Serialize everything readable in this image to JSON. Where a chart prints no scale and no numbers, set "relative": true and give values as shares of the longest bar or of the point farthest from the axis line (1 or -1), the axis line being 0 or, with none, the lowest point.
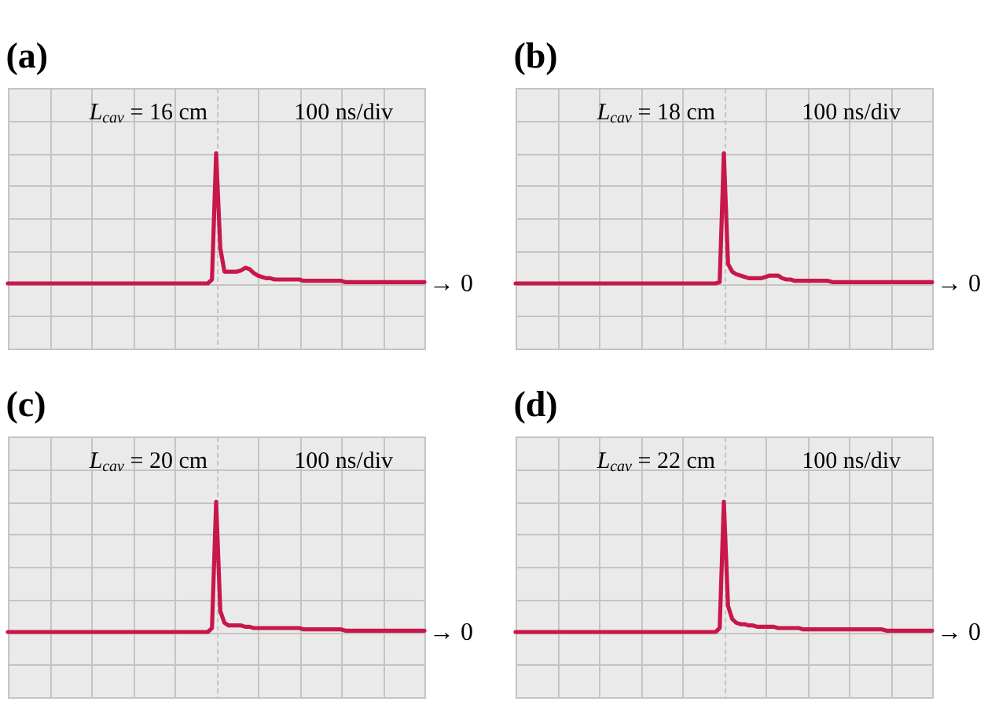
{
  "chart_data": [
    {
      "type": "line",
      "title": "(a)",
      "relative": true,
      "grid": true,
      "categories": [
        null,
        null,
        null,
        null,
        null,
        null,
        null,
        null,
        null,
        null,
        null,
        null,
        null,
        null,
        null,
        null,
        null,
        null,
        null,
        null,
        null,
        null,
        null,
        null,
        null,
        null,
        null,
        null,
        null,
        null,
        null,
        null,
        null,
        null,
        null,
        null,
        null,
        null,
        null,
        null,
        null,
        null,
        null,
        null,
        null,
        null,
        null,
        null,
        null,
        null,
        null,
        null,
        null,
        null,
        null,
        null,
        null,
        null,
        null,
        null,
        null,
        null,
        null,
        null,
        null,
        null,
        null,
        null,
        null,
        null,
        null,
        null,
        null,
        null,
        null,
        null,
        null,
        null,
        null,
        null,
        null,
        null,
        null,
        null,
        null,
        null,
        null,
        null,
        null,
        null,
        null,
        null,
        null,
        null,
        null,
        null,
        null,
        null,
        null,
        null,
        null
      ],
      "series": [
        {
          "color": "#c8174a",
          "values": [
            0,
            0,
            0,
            0,
            0,
            0,
            0,
            0,
            0,
            0,
            0,
            0,
            0,
            0,
            0,
            0,
            0,
            0,
            0,
            0,
            0,
            0,
            0,
            0,
            0,
            0,
            0,
            0,
            0,
            0,
            0,
            0,
            0,
            0,
            0,
            0,
            0,
            0,
            0,
            0,
            0,
            0,
            0,
            0,
            0,
            0,
            0,
            0,
            0,
            0.03,
            1,
            0.27,
            0.09,
            0.09,
            0.09,
            0.09,
            0.1,
            0.12,
            0.11,
            0.08,
            0.06,
            0.05,
            0.04,
            0.04,
            0.03,
            0.03,
            0.03,
            0.03,
            0.03,
            0.03,
            0.03,
            0.02,
            0.02,
            0.02,
            0.02,
            0.02,
            0.02,
            0.02,
            0.02,
            0.02,
            0.02,
            0.01,
            0.01,
            0.01,
            0.01,
            0.01,
            0.01,
            0.01,
            0.01,
            0.01,
            0.01,
            0.01,
            0.01,
            0.01,
            0.01,
            0.01,
            0.01,
            0.01,
            0.01,
            0.01,
            0.01
          ]
        }
      ],
      "annotations": [
        "L$_{cav}$ = 16 cm",
        "100 ns/div",
        "→ 0"
      ]
    },
    {
      "type": "line",
      "title": "(b)",
      "relative": true,
      "grid": true,
      "categories": [
        null,
        null,
        null,
        null,
        null,
        null,
        null,
        null,
        null,
        null,
        null,
        null,
        null,
        null,
        null,
        null,
        null,
        null,
        null,
        null,
        null,
        null,
        null,
        null,
        null,
        null,
        null,
        null,
        null,
        null,
        null,
        null,
        null,
        null,
        null,
        null,
        null,
        null,
        null,
        null,
        null,
        null,
        null,
        null,
        null,
        null,
        null,
        null,
        null,
        null,
        null,
        null,
        null,
        null,
        null,
        null,
        null,
        null,
        null,
        null,
        null,
        null,
        null,
        null,
        null,
        null,
        null,
        null,
        null,
        null,
        null,
        null,
        null,
        null,
        null,
        null,
        null,
        null,
        null,
        null,
        null,
        null,
        null,
        null,
        null,
        null,
        null,
        null,
        null,
        null,
        null,
        null,
        null,
        null,
        null,
        null,
        null,
        null,
        null,
        null,
        null
      ],
      "series": [
        {
          "color": "#c8174a",
          "values": [
            0,
            0,
            0,
            0,
            0,
            0,
            0,
            0,
            0,
            0,
            0,
            0,
            0,
            0,
            0,
            0,
            0,
            0,
            0,
            0,
            0,
            0,
            0,
            0,
            0,
            0,
            0,
            0,
            0,
            0,
            0,
            0,
            0,
            0,
            0,
            0,
            0,
            0,
            0,
            0,
            0,
            0,
            0,
            0,
            0,
            0,
            0,
            0,
            0,
            0.01,
            1,
            0.15,
            0.09,
            0.07,
            0.06,
            0.05,
            0.04,
            0.04,
            0.04,
            0.04,
            0.05,
            0.06,
            0.06,
            0.06,
            0.04,
            0.03,
            0.03,
            0.02,
            0.02,
            0.02,
            0.02,
            0.02,
            0.02,
            0.02,
            0.02,
            0.02,
            0.01,
            0.01,
            0.01,
            0.01,
            0.01,
            0.01,
            0.01,
            0.01,
            0.01,
            0.01,
            0.01,
            0.01,
            0.01,
            0.01,
            0.01,
            0.01,
            0.01,
            0.01,
            0.01,
            0.01,
            0.01,
            0.01,
            0.01,
            0.01,
            0.01
          ]
        }
      ],
      "annotations": [
        "L$_{cav}$ = 18 cm",
        "100 ns/div",
        "→ 0"
      ]
    },
    {
      "type": "line",
      "title": "(c)",
      "relative": true,
      "grid": true,
      "categories": [
        null,
        null,
        null,
        null,
        null,
        null,
        null,
        null,
        null,
        null,
        null,
        null,
        null,
        null,
        null,
        null,
        null,
        null,
        null,
        null,
        null,
        null,
        null,
        null,
        null,
        null,
        null,
        null,
        null,
        null,
        null,
        null,
        null,
        null,
        null,
        null,
        null,
        null,
        null,
        null,
        null,
        null,
        null,
        null,
        null,
        null,
        null,
        null,
        null,
        null,
        null,
        null,
        null,
        null,
        null,
        null,
        null,
        null,
        null,
        null,
        null,
        null,
        null,
        null,
        null,
        null,
        null,
        null,
        null,
        null,
        null,
        null,
        null,
        null,
        null,
        null,
        null,
        null,
        null,
        null,
        null,
        null,
        null,
        null,
        null,
        null,
        null,
        null,
        null,
        null,
        null,
        null,
        null,
        null,
        null,
        null,
        null,
        null,
        null,
        null,
        null
      ],
      "series": [
        {
          "color": "#c8174a",
          "values": [
            0,
            0,
            0,
            0,
            0,
            0,
            0,
            0,
            0,
            0,
            0,
            0,
            0,
            0,
            0,
            0,
            0,
            0,
            0,
            0,
            0,
            0,
            0,
            0,
            0,
            0,
            0,
            0,
            0,
            0,
            0,
            0,
            0,
            0,
            0,
            0,
            0,
            0,
            0,
            0,
            0,
            0,
            0,
            0,
            0,
            0,
            0,
            0,
            0,
            0.03,
            1,
            0.16,
            0.07,
            0.05,
            0.05,
            0.05,
            0.05,
            0.04,
            0.04,
            0.03,
            0.03,
            0.03,
            0.03,
            0.03,
            0.03,
            0.03,
            0.03,
            0.03,
            0.03,
            0.03,
            0.03,
            0.02,
            0.02,
            0.02,
            0.02,
            0.02,
            0.02,
            0.02,
            0.02,
            0.02,
            0.02,
            0.01,
            0.01,
            0.01,
            0.01,
            0.01,
            0.01,
            0.01,
            0.01,
            0.01,
            0.01,
            0.01,
            0.01,
            0.01,
            0.01,
            0.01,
            0.01,
            0.01,
            0.01,
            0.01,
            0.01
          ]
        }
      ],
      "annotations": [
        "L$_{cav}$ = 20 cm",
        "100 ns/div",
        "→ 0"
      ]
    },
    {
      "type": "line",
      "title": "(d)",
      "relative": true,
      "grid": true,
      "categories": [
        null,
        null,
        null,
        null,
        null,
        null,
        null,
        null,
        null,
        null,
        null,
        null,
        null,
        null,
        null,
        null,
        null,
        null,
        null,
        null,
        null,
        null,
        null,
        null,
        null,
        null,
        null,
        null,
        null,
        null,
        null,
        null,
        null,
        null,
        null,
        null,
        null,
        null,
        null,
        null,
        null,
        null,
        null,
        null,
        null,
        null,
        null,
        null,
        null,
        null,
        null,
        null,
        null,
        null,
        null,
        null,
        null,
        null,
        null,
        null,
        null,
        null,
        null,
        null,
        null,
        null,
        null,
        null,
        null,
        null,
        null,
        null,
        null,
        null,
        null,
        null,
        null,
        null,
        null,
        null,
        null,
        null,
        null,
        null,
        null,
        null,
        null,
        null,
        null,
        null,
        null,
        null,
        null,
        null,
        null,
        null,
        null,
        null,
        null,
        null,
        null
      ],
      "series": [
        {
          "color": "#c8174a",
          "values": [
            0,
            0,
            0,
            0,
            0,
            0,
            0,
            0,
            0,
            0,
            0,
            0,
            0,
            0,
            0,
            0,
            0,
            0,
            0,
            0,
            0,
            0,
            0,
            0,
            0,
            0,
            0,
            0,
            0,
            0,
            0,
            0,
            0,
            0,
            0,
            0,
            0,
            0,
            0,
            0,
            0,
            0,
            0,
            0,
            0,
            0,
            0,
            0,
            0,
            0.03,
            1,
            0.2,
            0.1,
            0.07,
            0.06,
            0.06,
            0.05,
            0.05,
            0.04,
            0.04,
            0.04,
            0.04,
            0.04,
            0.03,
            0.03,
            0.03,
            0.03,
            0.03,
            0.03,
            0.02,
            0.02,
            0.02,
            0.02,
            0.02,
            0.02,
            0.02,
            0.02,
            0.02,
            0.02,
            0.02,
            0.02,
            0.02,
            0.02,
            0.02,
            0.02,
            0.02,
            0.02,
            0.02,
            0.02,
            0.01,
            0.01,
            0.01,
            0.01,
            0.01,
            0.01,
            0.01,
            0.01,
            0.01,
            0.01,
            0.01,
            0.01
          ]
        }
      ],
      "annotations": [
        "L$_{cav}$ = 22 cm",
        "100 ns/div",
        "→ 0"
      ]
    }
  ]
}
